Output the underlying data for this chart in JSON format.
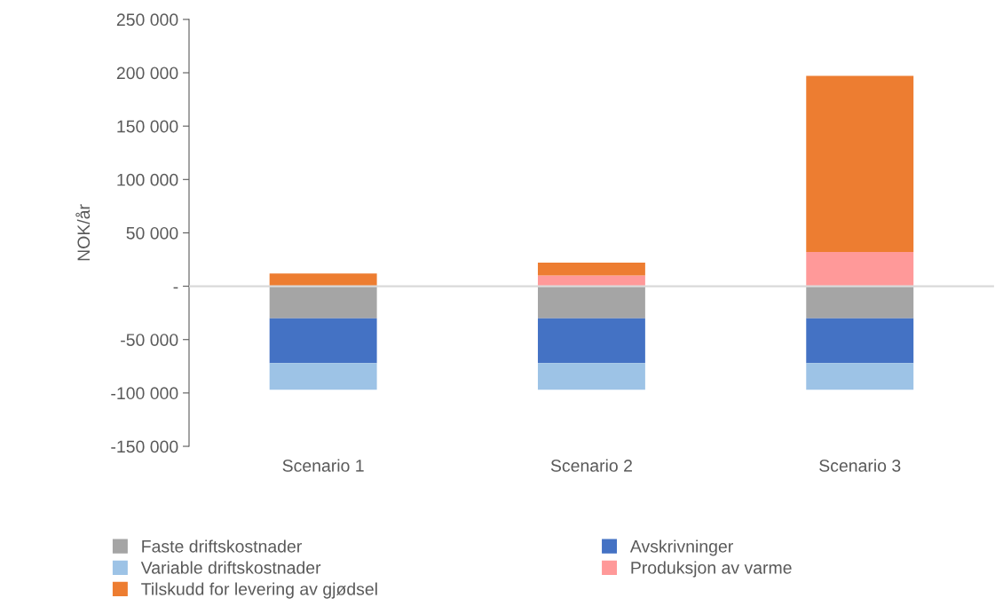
{
  "chart_data": {
    "type": "bar",
    "stacked": true,
    "ylabel": "NOK/år",
    "categories": [
      "Scenario 1",
      "Scenario 2",
      "Scenario 3"
    ],
    "series": [
      {
        "name": "Faste driftskostnader",
        "color": "#a5a5a5",
        "values": [
          -30000,
          -30000,
          -30000
        ]
      },
      {
        "name": "Avskrivninger",
        "color": "#4472c4",
        "values": [
          -42000,
          -42000,
          -42000
        ]
      },
      {
        "name": "Variable driftskostnader",
        "color": "#9dc3e6",
        "values": [
          -25000,
          -25000,
          -25000
        ]
      },
      {
        "name": "Produksjon av varme",
        "color": "#ff9999",
        "values": [
          0,
          10000,
          32000
        ]
      },
      {
        "name": "Tilskudd for levering av gjødsel",
        "color": "#ed7d31",
        "values": [
          12000,
          12000,
          165000
        ]
      }
    ],
    "ylim": [
      -150000,
      250000
    ],
    "yticks": [
      {
        "value": -150000,
        "label": "-150 000"
      },
      {
        "value": -100000,
        "label": "-100 000"
      },
      {
        "value": -50000,
        "label": "-50 000"
      },
      {
        "value": 0,
        "label": "-"
      },
      {
        "value": 50000,
        "label": "50 000"
      },
      {
        "value": 100000,
        "label": "100 000"
      },
      {
        "value": 150000,
        "label": "150 000"
      },
      {
        "value": 200000,
        "label": "200 000"
      },
      {
        "value": 250000,
        "label": "250 000"
      }
    ],
    "ref_lines": [
      {
        "axis": "y",
        "value": 0,
        "color": "#d9d9d9"
      }
    ],
    "grid": false,
    "legend": "bottom"
  }
}
